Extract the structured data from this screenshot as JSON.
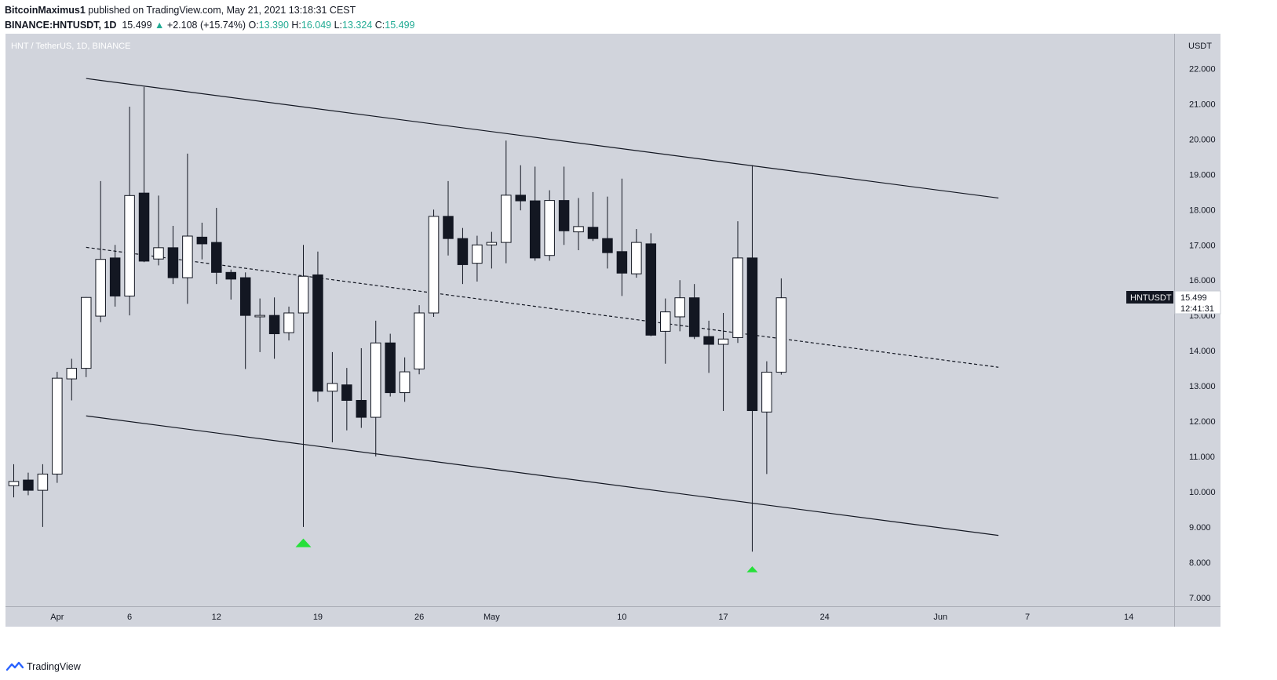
{
  "header": {
    "author": "BitcoinMaximus1",
    "published_text": "published on TradingView.com, May 21, 2021 13:18:31 CEST",
    "symbol": "BINANCE:HNTUSDT, 1D",
    "last": "15.499",
    "change": "+2.108 (+15.74%)",
    "open_label": "O:",
    "open": "13.390",
    "high_label": "H:",
    "high": "16.049",
    "low_label": "L:",
    "low": "13.324",
    "close_label": "C:",
    "close": "15.499"
  },
  "footer": {
    "brand": "TradingView"
  },
  "colors": {
    "plot_bg": "#d1d4dc",
    "up_body": "#ffffff",
    "down_body": "#131722",
    "wick": "#131722",
    "marker": "#26e03a",
    "change_text": "#22ab94"
  },
  "chart_data": {
    "type": "candlestick",
    "title": "HNT / TetherUS, 1D, BINANCE",
    "currency": "USDT",
    "ylim": [
      6.75,
      22.99
    ],
    "y_ticks": [
      "7.000",
      "8.000",
      "9.000",
      "10.000",
      "11.000",
      "12.000",
      "13.000",
      "14.000",
      "15.000",
      "16.000",
      "17.000",
      "18.000",
      "19.000",
      "20.000",
      "21.000",
      "22.000"
    ],
    "x_ticks": [
      {
        "label": "Apr",
        "date": "2021-04-01"
      },
      {
        "label": "6",
        "date": "2021-04-06"
      },
      {
        "label": "12",
        "date": "2021-04-12"
      },
      {
        "label": "19",
        "date": "2021-04-19"
      },
      {
        "label": "26",
        "date": "2021-04-26"
      },
      {
        "label": "May",
        "date": "2021-05-01"
      },
      {
        "label": "10",
        "date": "2021-05-10"
      },
      {
        "label": "17",
        "date": "2021-05-17"
      },
      {
        "label": "24",
        "date": "2021-05-24"
      },
      {
        "label": "Jun",
        "date": "2021-06-01"
      },
      {
        "label": "7",
        "date": "2021-06-07"
      },
      {
        "label": "14",
        "date": "2021-06-14"
      }
    ],
    "candles": [
      {
        "date": "2021-03-29",
        "o": 10.17,
        "h": 10.78,
        "l": 9.84,
        "c": 10.29
      },
      {
        "date": "2021-03-30",
        "o": 10.33,
        "h": 10.54,
        "l": 9.9,
        "c": 10.04
      },
      {
        "date": "2021-03-31",
        "o": 10.04,
        "h": 10.78,
        "l": 9.0,
        "c": 10.5
      },
      {
        "date": "2021-04-01",
        "o": 10.5,
        "h": 13.4,
        "l": 10.25,
        "c": 13.22
      },
      {
        "date": "2021-04-02",
        "o": 13.2,
        "h": 13.77,
        "l": 12.59,
        "c": 13.5
      },
      {
        "date": "2021-04-03",
        "o": 13.5,
        "h": 15.52,
        "l": 13.25,
        "c": 15.51
      },
      {
        "date": "2021-04-04",
        "o": 14.98,
        "h": 18.81,
        "l": 14.81,
        "c": 16.59
      },
      {
        "date": "2021-04-05",
        "o": 16.63,
        "h": 17.0,
        "l": 15.25,
        "c": 15.55
      },
      {
        "date": "2021-04-06",
        "o": 15.55,
        "h": 20.92,
        "l": 15.0,
        "c": 18.4
      },
      {
        "date": "2021-04-07",
        "o": 18.47,
        "h": 21.48,
        "l": 16.51,
        "c": 16.54
      },
      {
        "date": "2021-04-08",
        "o": 16.6,
        "h": 18.4,
        "l": 16.42,
        "c": 16.92
      },
      {
        "date": "2021-04-09",
        "o": 16.92,
        "h": 17.54,
        "l": 15.89,
        "c": 16.07
      },
      {
        "date": "2021-04-10",
        "o": 16.07,
        "h": 19.59,
        "l": 15.33,
        "c": 17.25
      },
      {
        "date": "2021-04-11",
        "o": 17.22,
        "h": 17.63,
        "l": 16.59,
        "c": 17.03
      },
      {
        "date": "2021-04-12",
        "o": 17.07,
        "h": 18.05,
        "l": 15.89,
        "c": 16.22
      },
      {
        "date": "2021-04-13",
        "o": 16.22,
        "h": 16.3,
        "l": 15.45,
        "c": 16.03
      },
      {
        "date": "2021-04-14",
        "o": 16.07,
        "h": 16.22,
        "l": 13.48,
        "c": 15.0
      },
      {
        "date": "2021-04-15",
        "o": 14.96,
        "h": 15.48,
        "l": 13.96,
        "c": 15.0
      },
      {
        "date": "2021-04-16",
        "o": 15.0,
        "h": 15.51,
        "l": 13.77,
        "c": 14.48
      },
      {
        "date": "2021-04-17",
        "o": 14.51,
        "h": 15.25,
        "l": 14.29,
        "c": 15.07
      },
      {
        "date": "2021-04-18",
        "o": 15.07,
        "h": 17.0,
        "l": 9.0,
        "c": 16.11
      },
      {
        "date": "2021-04-19",
        "o": 16.15,
        "h": 16.81,
        "l": 12.55,
        "c": 12.85
      },
      {
        "date": "2021-04-20",
        "o": 12.85,
        "h": 13.96,
        "l": 11.4,
        "c": 13.07
      },
      {
        "date": "2021-04-21",
        "o": 13.03,
        "h": 13.51,
        "l": 11.74,
        "c": 12.59
      },
      {
        "date": "2021-04-22",
        "o": 12.59,
        "h": 14.07,
        "l": 11.81,
        "c": 12.11
      },
      {
        "date": "2021-04-23",
        "o": 12.11,
        "h": 14.85,
        "l": 11.0,
        "c": 14.22
      },
      {
        "date": "2021-04-24",
        "o": 14.22,
        "h": 14.48,
        "l": 12.7,
        "c": 12.81
      },
      {
        "date": "2021-04-25",
        "o": 12.81,
        "h": 13.81,
        "l": 12.55,
        "c": 13.4
      },
      {
        "date": "2021-04-26",
        "o": 13.48,
        "h": 15.29,
        "l": 13.33,
        "c": 15.07
      },
      {
        "date": "2021-04-27",
        "o": 15.07,
        "h": 18.0,
        "l": 14.96,
        "c": 17.81
      },
      {
        "date": "2021-04-28",
        "o": 17.81,
        "h": 18.81,
        "l": 16.7,
        "c": 17.18
      },
      {
        "date": "2021-04-29",
        "o": 17.18,
        "h": 17.48,
        "l": 15.89,
        "c": 16.44
      },
      {
        "date": "2021-04-30",
        "o": 16.48,
        "h": 17.26,
        "l": 15.96,
        "c": 17.0
      },
      {
        "date": "2021-05-01",
        "o": 17.0,
        "h": 17.37,
        "l": 16.33,
        "c": 17.07
      },
      {
        "date": "2021-05-02",
        "o": 17.07,
        "h": 19.96,
        "l": 16.48,
        "c": 18.41
      },
      {
        "date": "2021-05-03",
        "o": 18.41,
        "h": 19.26,
        "l": 17.98,
        "c": 18.25
      },
      {
        "date": "2021-05-04",
        "o": 18.25,
        "h": 19.22,
        "l": 16.55,
        "c": 16.63
      },
      {
        "date": "2021-05-05",
        "o": 16.7,
        "h": 18.55,
        "l": 16.55,
        "c": 18.26
      },
      {
        "date": "2021-05-06",
        "o": 18.26,
        "h": 19.22,
        "l": 17.0,
        "c": 17.4
      },
      {
        "date": "2021-05-07",
        "o": 17.37,
        "h": 18.33,
        "l": 16.85,
        "c": 17.52
      },
      {
        "date": "2021-05-08",
        "o": 17.5,
        "h": 18.5,
        "l": 17.11,
        "c": 17.18
      },
      {
        "date": "2021-05-09",
        "o": 17.18,
        "h": 18.37,
        "l": 16.33,
        "c": 16.78
      },
      {
        "date": "2021-05-10",
        "o": 16.81,
        "h": 18.88,
        "l": 15.55,
        "c": 16.2
      },
      {
        "date": "2021-05-11",
        "o": 16.18,
        "h": 17.45,
        "l": 16.07,
        "c": 17.07
      },
      {
        "date": "2021-05-12",
        "o": 17.03,
        "h": 17.33,
        "l": 14.41,
        "c": 14.44
      },
      {
        "date": "2021-05-13",
        "o": 14.55,
        "h": 15.48,
        "l": 13.63,
        "c": 15.1
      },
      {
        "date": "2021-05-14",
        "o": 14.96,
        "h": 16.0,
        "l": 14.55,
        "c": 15.5
      },
      {
        "date": "2021-05-15",
        "o": 15.5,
        "h": 15.89,
        "l": 14.33,
        "c": 14.4
      },
      {
        "date": "2021-05-16",
        "o": 14.4,
        "h": 14.85,
        "l": 13.37,
        "c": 14.18
      },
      {
        "date": "2021-05-17",
        "o": 14.18,
        "h": 15.07,
        "l": 12.29,
        "c": 14.33
      },
      {
        "date": "2021-05-18",
        "o": 14.37,
        "h": 17.67,
        "l": 14.22,
        "c": 16.63
      },
      {
        "date": "2021-05-19",
        "o": 16.63,
        "h": 19.26,
        "l": 8.3,
        "c": 12.3
      },
      {
        "date": "2021-05-20",
        "o": 12.26,
        "h": 13.7,
        "l": 10.5,
        "c": 13.39
      },
      {
        "date": "2021-05-21",
        "o": 13.39,
        "h": 16.05,
        "l": 13.32,
        "c": 15.5
      }
    ],
    "trendlines": [
      {
        "name": "upper",
        "style": "solid",
        "points": [
          [
            "2021-04-03",
            21.72
          ],
          [
            "2021-06-05",
            18.33
          ]
        ]
      },
      {
        "name": "middle",
        "style": "dashed",
        "points": [
          [
            "2021-04-03",
            16.93
          ],
          [
            "2021-06-05",
            13.53
          ]
        ]
      },
      {
        "name": "lower",
        "style": "solid",
        "points": [
          [
            "2021-04-03",
            12.15
          ],
          [
            "2021-06-05",
            8.76
          ]
        ]
      }
    ],
    "markers": [
      {
        "date": "2021-04-18",
        "price": 8.55,
        "shape": "triangle-up"
      },
      {
        "date": "2021-05-19",
        "price": 7.8,
        "shape": "triangle-up"
      }
    ],
    "last_price_tag": {
      "symbol": "HNTUSDT",
      "price": "15.499",
      "countdown": "12:41:31"
    }
  }
}
